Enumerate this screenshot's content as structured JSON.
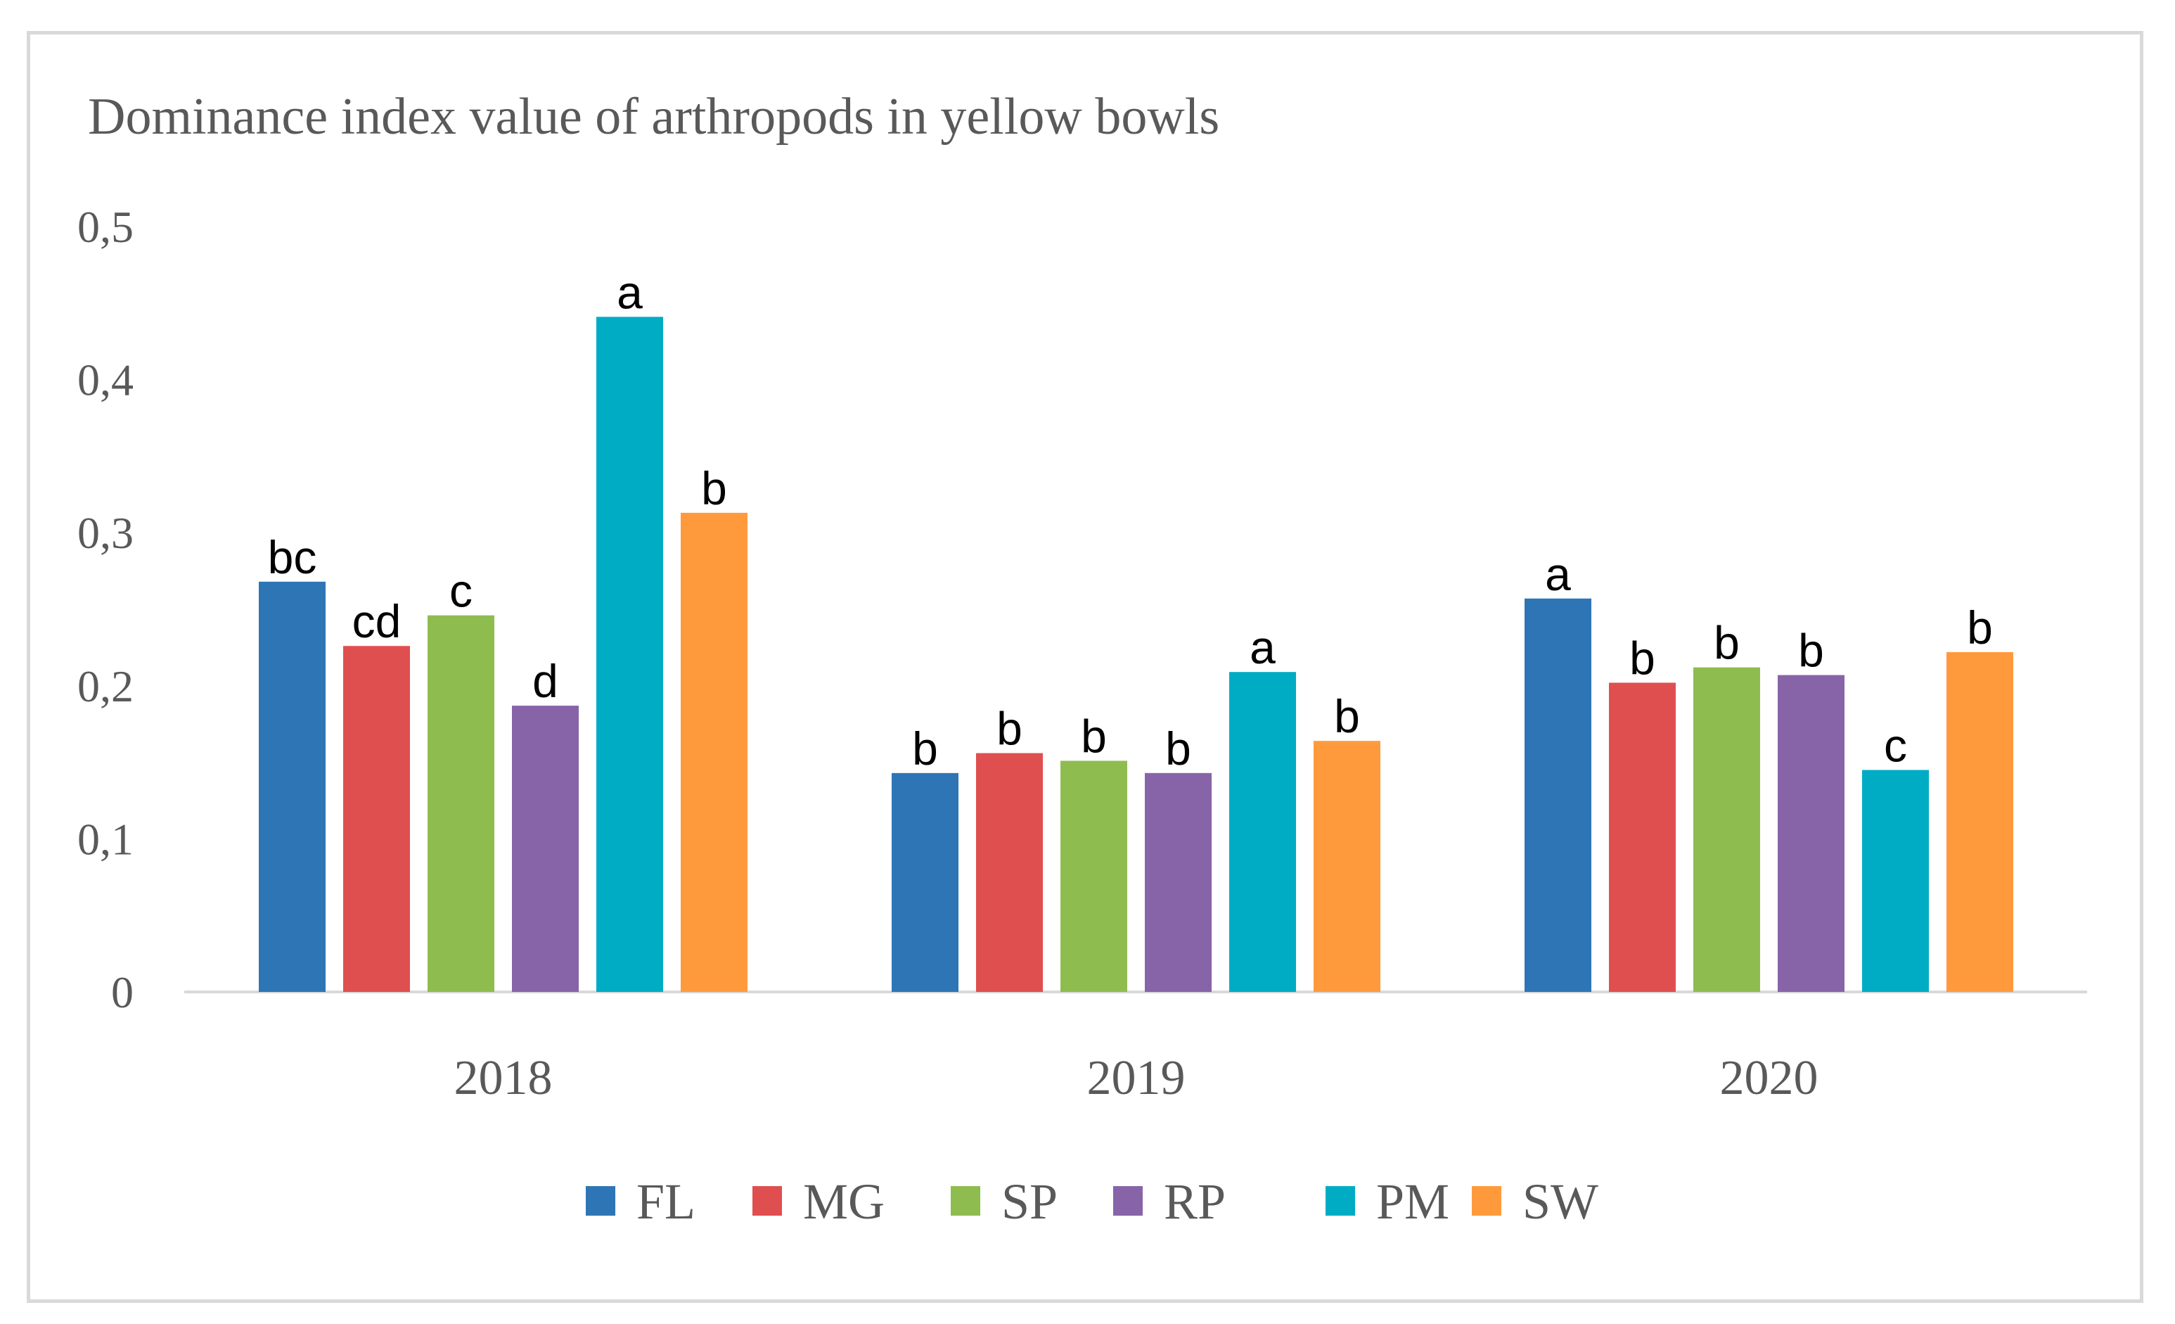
{
  "chart_data": {
    "type": "bar",
    "title": "Dominance index value of arthropods in yellow bowls",
    "xlabel": "",
    "ylabel": "",
    "ylim": [
      0,
      0.5
    ],
    "yticks": [
      "0",
      "0,1",
      "0,2",
      "0,3",
      "0,4",
      "0,5"
    ],
    "ytick_values": [
      0,
      0.1,
      0.2,
      0.3,
      0.4,
      0.5
    ],
    "categories": [
      "2018",
      "2019",
      "2020"
    ],
    "legend_position": "bottom",
    "series": [
      {
        "name": "FL",
        "color": "#2E75B6",
        "values": [
          0.268,
          0.143,
          0.257
        ],
        "labels": [
          "bc",
          "b",
          "a"
        ]
      },
      {
        "name": "MG",
        "color": "#E04F4F",
        "values": [
          0.226,
          0.156,
          0.202
        ],
        "labels": [
          "cd",
          "b",
          "b"
        ]
      },
      {
        "name": "SP",
        "color": "#8FBC4F",
        "values": [
          0.246,
          0.151,
          0.212
        ],
        "labels": [
          "c",
          "b",
          "b"
        ]
      },
      {
        "name": "RP",
        "color": "#8764A8",
        "values": [
          0.187,
          0.143,
          0.207
        ],
        "labels": [
          "d",
          "b",
          "b"
        ]
      },
      {
        "name": "PM",
        "color": "#00ACC4",
        "values": [
          0.441,
          0.209,
          0.145
        ],
        "labels": [
          "a",
          "a",
          "c"
        ]
      },
      {
        "name": "SW",
        "color": "#FF9A3C",
        "values": [
          0.313,
          0.164,
          0.222
        ],
        "labels": [
          "b",
          "b",
          "b"
        ]
      }
    ]
  }
}
